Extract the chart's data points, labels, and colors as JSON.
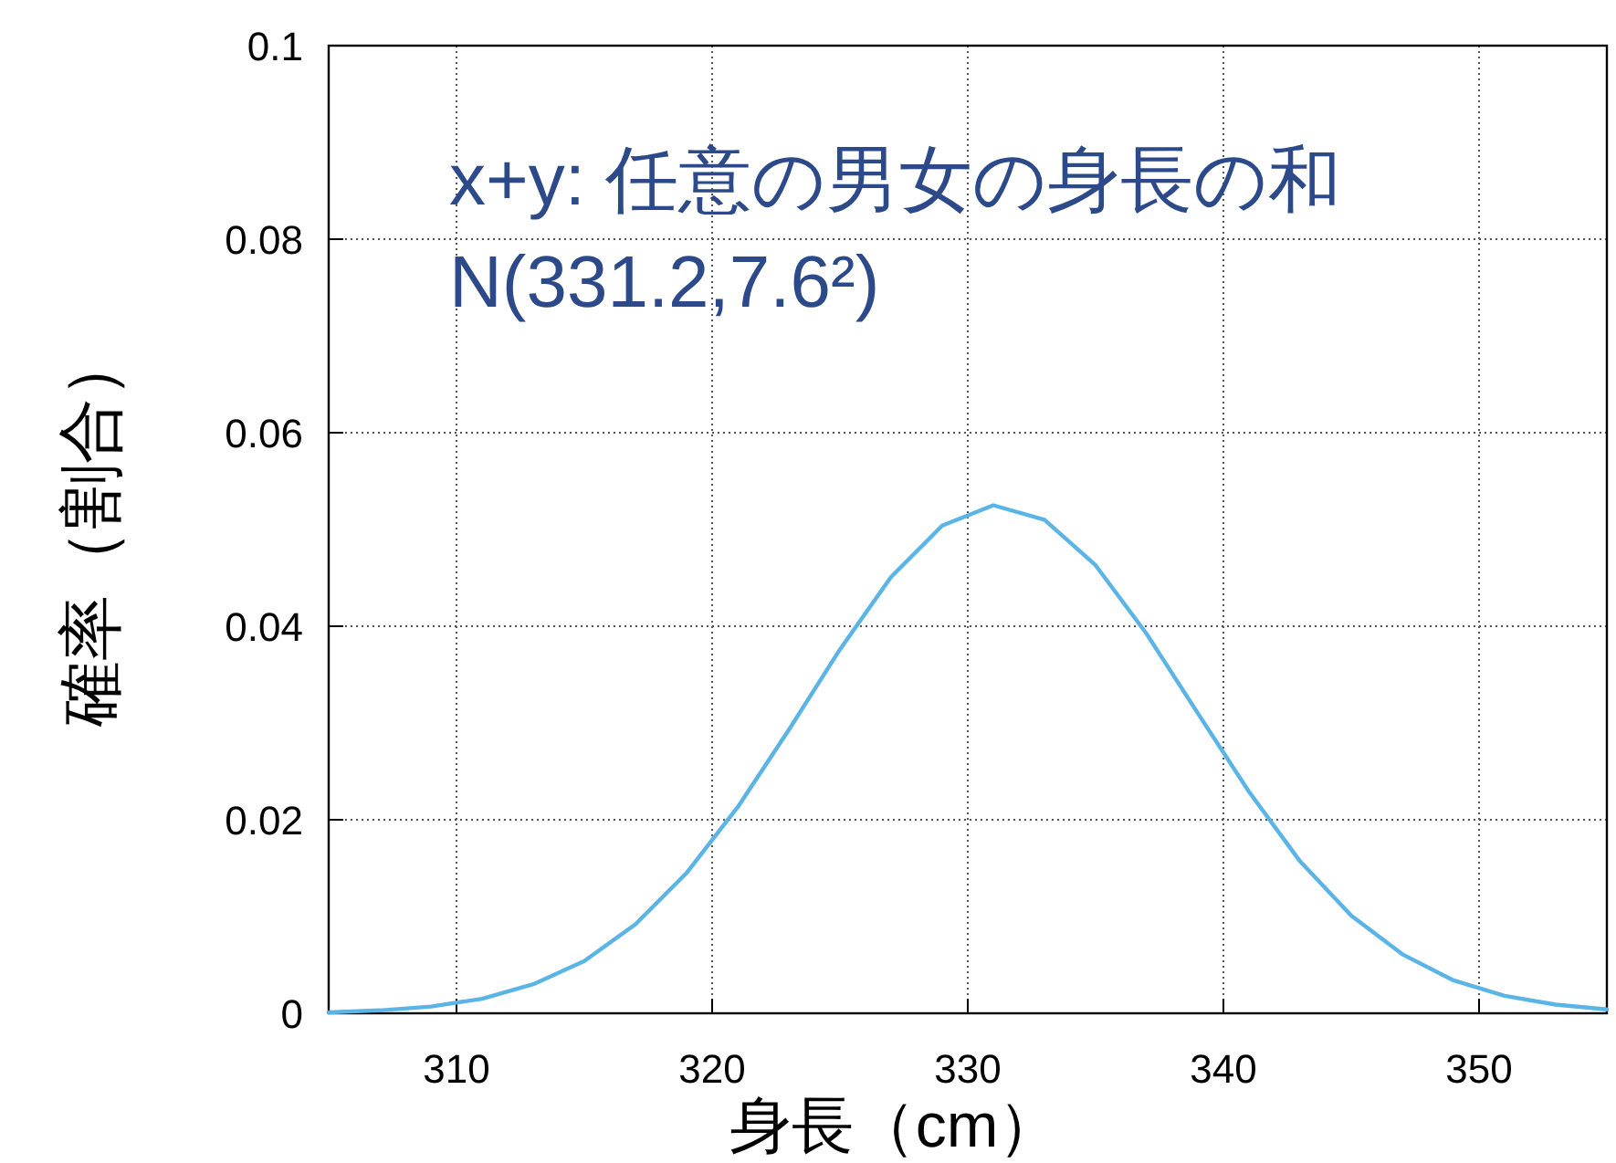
{
  "chart_data": {
    "type": "line",
    "xlabel": "身長（cm）",
    "ylabel": "確率（割合）",
    "annotations": [
      "x+y: 任意の男女の身長の和",
      "N(331.2,7.6²)"
    ],
    "xlim": [
      305,
      355
    ],
    "xticks": [
      310,
      320,
      330,
      340,
      350
    ],
    "ylim": [
      0,
      0.1
    ],
    "yticks": [
      0,
      0.02,
      0.04,
      0.06,
      0.08,
      0.1
    ],
    "grid": true,
    "line_style": "solid",
    "marker": "none",
    "series": [
      {
        "color": "#5ab4e6",
        "x": [
          305,
          307,
          309,
          311,
          313,
          315,
          317,
          319,
          321,
          323,
          325,
          327,
          329,
          331,
          333,
          335,
          337,
          339,
          341,
          343,
          345,
          347,
          349,
          351,
          353,
          355
        ],
        "values": [
          0.0001,
          0.0003,
          0.0007,
          0.0015,
          0.003,
          0.0054,
          0.0092,
          0.0145,
          0.0213,
          0.0293,
          0.0376,
          0.0451,
          0.0504,
          0.0525,
          0.051,
          0.0463,
          0.0392,
          0.031,
          0.0229,
          0.0157,
          0.0101,
          0.0061,
          0.0034,
          0.0018,
          0.0009,
          0.0004
        ]
      }
    ]
  }
}
